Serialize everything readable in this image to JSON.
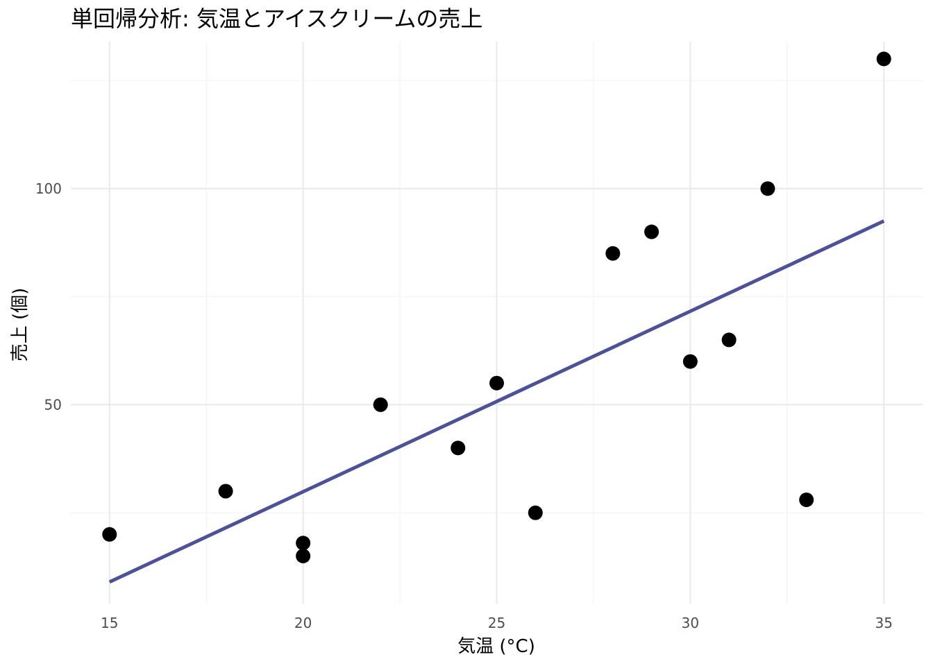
{
  "chart_data": {
    "type": "scatter",
    "title": "単回帰分析: 気温とアイスクリームの売上",
    "xlabel": "気温 (°C)",
    "ylabel": "売上 (個)",
    "xlim": [
      14.0,
      36.0
    ],
    "ylim": [
      4.0,
      134.0
    ],
    "x_ticks": [
      15,
      20,
      25,
      30,
      35
    ],
    "x_minor_ticks": [
      17.5,
      22.5,
      27.5,
      32.5
    ],
    "y_ticks": [
      50,
      100
    ],
    "y_minor_ticks": [
      25,
      75,
      125
    ],
    "grid": true,
    "legend": "none",
    "point_color": "#000000",
    "line_color": "#4a52a0",
    "points": [
      {
        "x": 15,
        "y": 20
      },
      {
        "x": 18,
        "y": 30
      },
      {
        "x": 20,
        "y": 18
      },
      {
        "x": 20,
        "y": 15
      },
      {
        "x": 22,
        "y": 50
      },
      {
        "x": 24,
        "y": 40
      },
      {
        "x": 25,
        "y": 55
      },
      {
        "x": 26,
        "y": 25
      },
      {
        "x": 28,
        "y": 85
      },
      {
        "x": 29,
        "y": 90
      },
      {
        "x": 30,
        "y": 60
      },
      {
        "x": 31,
        "y": 65
      },
      {
        "x": 32,
        "y": 100
      },
      {
        "x": 33,
        "y": 28
      },
      {
        "x": 35,
        "y": 130
      }
    ],
    "regression_line": {
      "x": [
        15,
        35
      ],
      "y": [
        9.0,
        92.5
      ]
    }
  }
}
